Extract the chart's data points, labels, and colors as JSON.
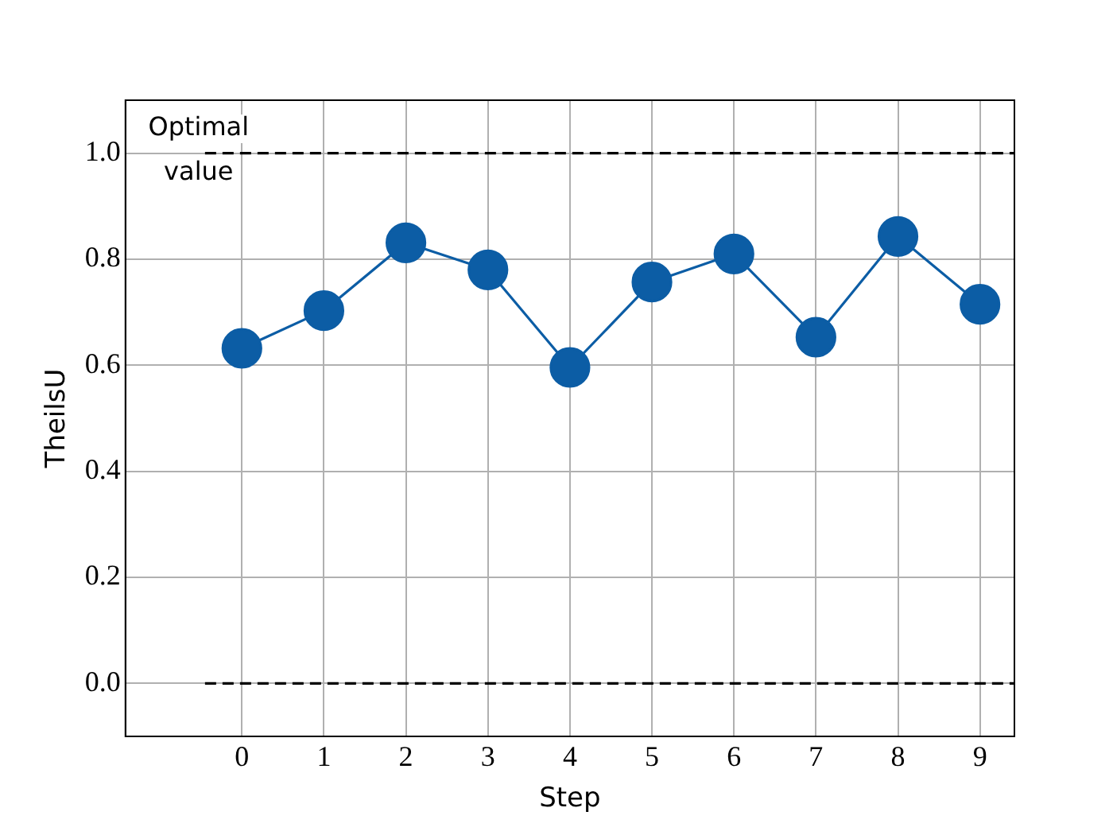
{
  "chart_data": {
    "type": "line",
    "xlabel": "Step",
    "ylabel": "TheilsU",
    "xlim": [
      -1.42,
      9.42
    ],
    "ylim": [
      -0.1,
      1.1
    ],
    "xticks": [
      0,
      1,
      2,
      3,
      4,
      5,
      6,
      7,
      8,
      9
    ],
    "yticks": [
      {
        "value": 0,
        "label": "0.0"
      },
      {
        "value": 0.2,
        "label": "0.2"
      },
      {
        "value": 0.4,
        "label": "0.4"
      },
      {
        "value": 0.6,
        "label": "0.6"
      },
      {
        "value": 0.8,
        "label": "0.8"
      },
      {
        "value": 1,
        "label": "1.0"
      }
    ],
    "grid": true,
    "legend": false,
    "series": [
      {
        "color": "#0c5da5",
        "marker": "circle",
        "line_style": "solid",
        "x": [
          0,
          1,
          2,
          3,
          4,
          5,
          6,
          7,
          8,
          9
        ],
        "values": [
          0.632,
          0.703,
          0.831,
          0.78,
          0.596,
          0.757,
          0.81,
          0.653,
          0.843,
          0.715
        ]
      },
      {
        "color": "#000000",
        "marker": "none",
        "line_style": "dashed",
        "x": [
          -0.45,
          9.42
        ],
        "values": [
          1,
          1
        ]
      },
      {
        "color": "#000000",
        "marker": "none",
        "line_style": "dashed",
        "x": [
          -0.45,
          9.42
        ],
        "values": [
          0,
          0
        ]
      }
    ],
    "annotations": [
      "Optimal\nvalue"
    ]
  }
}
